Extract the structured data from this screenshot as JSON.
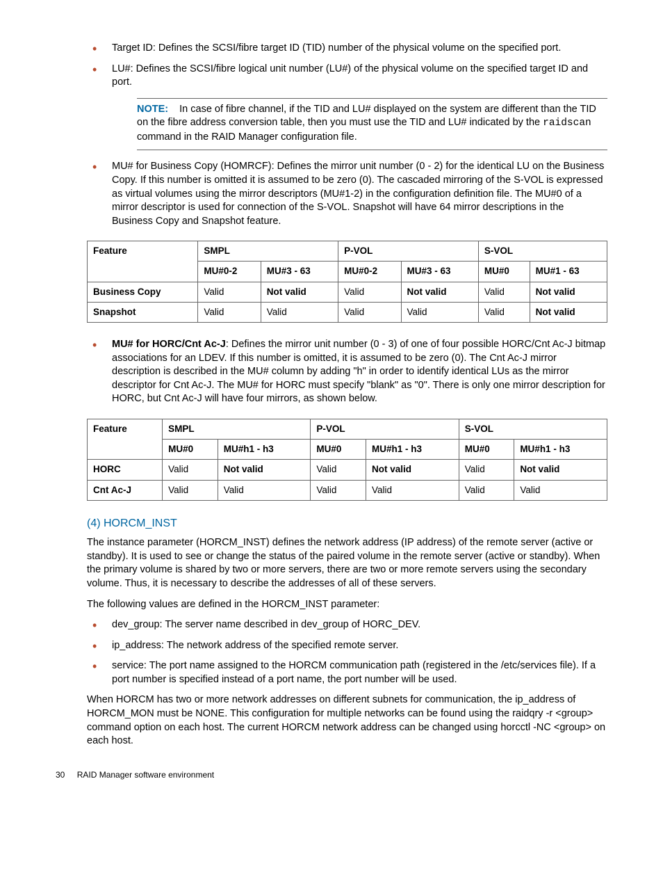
{
  "bullets_top": [
    {
      "text": "Target ID: Defines the SCSI/fibre target ID (TID) number of the physical volume on the specified port."
    },
    {
      "text": "LU#: Defines the SCSI/fibre logical unit number (LU#) of the physical volume on the specified target ID and port."
    }
  ],
  "note": {
    "label": "NOTE:",
    "body_before": "In case of fibre channel, if the TID and LU# displayed on the system are different than the TID on the fibre address conversion table, then you must use the TID and LU# indicated by the ",
    "code": "raidscan",
    "body_after": " command in the RAID Manager configuration file."
  },
  "bullet_mu_bc": "MU# for Business Copy (HOMRCF): Defines the mirror unit number (0 - 2) for the identical LU on the Business Copy. If this number is omitted it is assumed to be zero (0). The cascaded mirroring of the S-VOL is expressed as virtual volumes using the mirror descriptors (MU#1-2) in the configuration definition file. The MU#0 of a mirror descriptor is used for connection of the S-VOL. Snapshot will have 64 mirror descriptions in the Business Copy and Snapshot feature.",
  "table1": {
    "headers_row1": [
      "Feature",
      "SMPL",
      "P-VOL",
      "S-VOL"
    ],
    "headers_row2": [
      "MU#0-2",
      "MU#3 - 63",
      "MU#0-2",
      "MU#3 - 63",
      "MU#0",
      "MU#1 - 63"
    ],
    "rows": [
      {
        "label": "Business Copy",
        "cells": [
          "Valid",
          "Not valid",
          "Valid",
          "Not valid",
          "Valid",
          "Not valid"
        ],
        "bold_idx": [
          1,
          3,
          5
        ]
      },
      {
        "label": "Snapshot",
        "cells": [
          "Valid",
          "Valid",
          "Valid",
          "Valid",
          "Valid",
          "Not valid"
        ],
        "bold_idx": [
          5
        ]
      }
    ]
  },
  "bullet_mu_horc": {
    "bold": "MU# for HORC/Cnt Ac-J",
    "rest": ": Defines the mirror unit number (0 - 3) of one of four possible HORC/Cnt Ac-J bitmap associations for an LDEV. If this number is omitted, it is assumed to be zero (0). The Cnt Ac-J mirror description is described in the MU# column by adding \"h\" in order to identify identical LUs as the mirror descriptor for Cnt Ac-J. The MU# for HORC must specify \"blank\" as \"0\". There is only one mirror description for HORC, but Cnt Ac-J will have four mirrors, as shown below."
  },
  "table2": {
    "headers_row1": [
      "Feature",
      "SMPL",
      "P-VOL",
      "S-VOL"
    ],
    "headers_row2": [
      "MU#0",
      "MU#h1 - h3",
      "MU#0",
      "MU#h1 - h3",
      "MU#0",
      "MU#h1 - h3"
    ],
    "rows": [
      {
        "label": "HORC",
        "cells": [
          "Valid",
          "Not valid",
          "Valid",
          "Not valid",
          "Valid",
          "Not valid"
        ],
        "bold_idx": [
          1,
          3,
          5
        ]
      },
      {
        "label": "Cnt Ac-J",
        "cells": [
          "Valid",
          "Valid",
          "Valid",
          "Valid",
          "Valid",
          "Valid"
        ],
        "bold_idx": []
      }
    ]
  },
  "section4": {
    "heading": "(4) HORCM_INST",
    "para1": "The instance parameter (HORCM_INST) defines the network address (IP address) of the remote server (active or standby). It is used to see or change the status of the paired volume in the remote server (active or standby). When the primary volume is shared by two or more servers, there are two or more remote servers using the secondary volume. Thus, it is necessary to describe the addresses of all of these servers.",
    "para2": "The following values are defined in the HORCM_INST parameter:",
    "items": [
      "dev_group: The server name described in dev_group of HORC_DEV.",
      "ip_address: The network address of the specified remote server.",
      "service: The port name assigned to the HORCM communication path (registered in the /etc/services file). If a port number is specified instead of a port name, the port number will be used."
    ],
    "para3": "When HORCM has two or more network addresses on different subnets for communication, the ip_address of HORCM_MON must be NONE. This configuration for multiple networks can be found using the raidqry -r <group> command option on each host. The current HORCM network address can be changed using horcctl -NC <group> on each host."
  },
  "footer": {
    "page": "30",
    "title": "RAID Manager software environment"
  }
}
